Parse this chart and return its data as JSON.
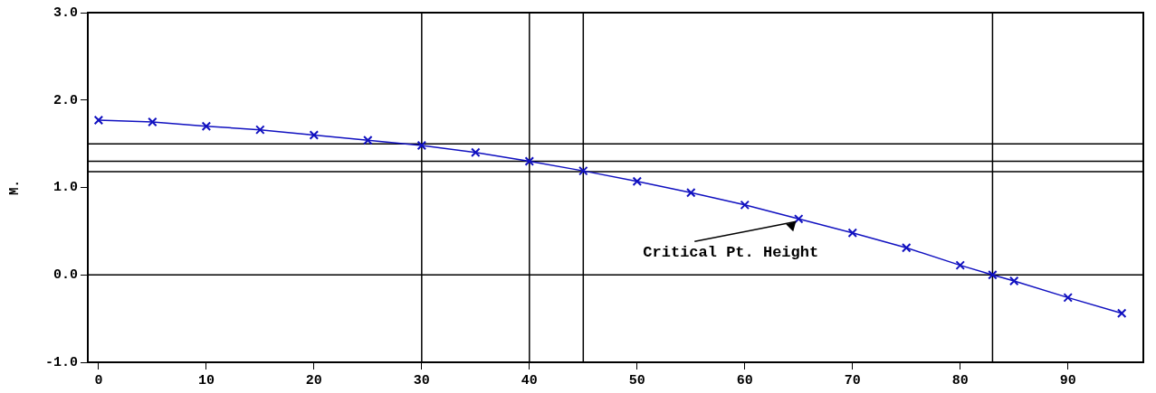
{
  "chart_data": {
    "type": "line",
    "ylabel": "M.",
    "x": [
      0,
      5,
      10,
      15,
      20,
      25,
      30,
      35,
      40,
      45,
      50,
      55,
      60,
      65,
      70,
      75,
      80,
      83,
      85,
      90,
      95
    ],
    "series": [
      {
        "color": "#1010c0",
        "values": [
          1.77,
          1.75,
          1.7,
          1.66,
          1.6,
          1.54,
          1.48,
          1.4,
          1.3,
          1.19,
          1.07,
          0.94,
          0.8,
          0.64,
          0.48,
          0.31,
          0.11,
          0,
          -0.07,
          -0.26,
          -0.44
        ]
      }
    ],
    "xlim": [
      -1,
      97
    ],
    "xticks": [
      0,
      10,
      20,
      30,
      40,
      50,
      60,
      70,
      80,
      90
    ],
    "ylim": [
      -1,
      3
    ],
    "yticks": [
      {
        "value": -1,
        "label": "-1.0"
      },
      {
        "value": 0,
        "label": "0.0"
      },
      {
        "value": 1,
        "label": "1.0"
      },
      {
        "value": 2,
        "label": "2.0"
      },
      {
        "value": 3,
        "label": "3.0"
      }
    ],
    "ref_lines": [
      {
        "axis": "y",
        "value": 0
      },
      {
        "axis": "y",
        "value": 1.5
      },
      {
        "axis": "y",
        "value": 1.3
      },
      {
        "axis": "y",
        "value": 1.18
      },
      {
        "axis": "x",
        "value": 30
      },
      {
        "axis": "x",
        "value": 40
      },
      {
        "axis": "x",
        "value": 45
      },
      {
        "axis": "x",
        "value": 83
      }
    ],
    "annotations": [
      {
        "text": "Critical Pt. Height",
        "x": 65,
        "y": 0.64
      }
    ],
    "marker": "cross",
    "line_style": "solid",
    "grid": false,
    "legend": false
  }
}
